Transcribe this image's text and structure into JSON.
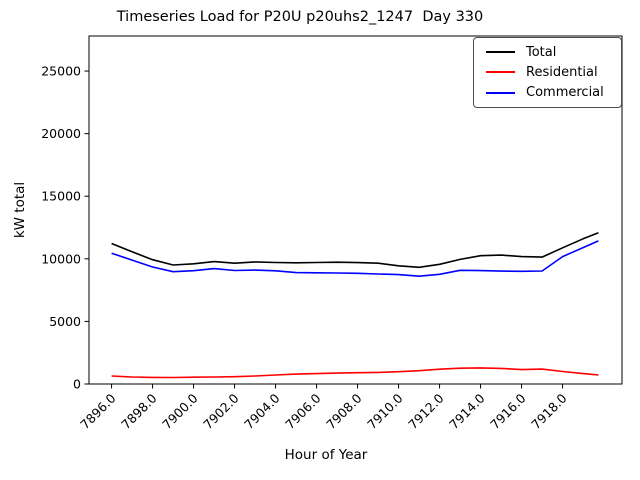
{
  "chart_data": {
    "type": "line",
    "title": "Timeseries Load for P20U p20uhs2_1247  Day 330",
    "xlabel": "Hour of Year",
    "ylabel": "kW total",
    "xlim": [
      7894.9,
      7920.9
    ],
    "ylim": [
      0,
      27800
    ],
    "grid": false,
    "legend_position": "upper right",
    "xticks": [
      7896,
      7898,
      7900,
      7902,
      7904,
      7906,
      7908,
      7910,
      7912,
      7914,
      7916,
      7918
    ],
    "xtick_labels": [
      "7896.0",
      "7898.0",
      "7900.0",
      "7902.0",
      "7904.0",
      "7906.0",
      "7908.0",
      "7910.0",
      "7912.0",
      "7914.0",
      "7916.0",
      "7918.0"
    ],
    "yticks": [
      0,
      5000,
      10000,
      15000,
      20000,
      25000
    ],
    "ytick_labels": [
      "0",
      "5000",
      "10000",
      "15000",
      "20000",
      "25000"
    ],
    "x": [
      7896,
      7897,
      7898,
      7899,
      7900,
      7901,
      7902,
      7903,
      7904,
      7905,
      7906,
      7907,
      7908,
      7909,
      7910,
      7911,
      7912,
      7913,
      7914,
      7915,
      7916,
      7917,
      7918,
      7919,
      7919.75
    ],
    "series": [
      {
        "name": "Total",
        "color": "#000000",
        "values": [
          11220,
          10560,
          9930,
          9510,
          9600,
          9780,
          9650,
          9750,
          9710,
          9680,
          9710,
          9730,
          9700,
          9650,
          9440,
          9320,
          9560,
          9950,
          10250,
          10300,
          10180,
          10140,
          10880,
          11600,
          12080
        ]
      },
      {
        "name": "Residential",
        "color": "#ff0000",
        "values": [
          640,
          560,
          530,
          520,
          540,
          560,
          580,
          640,
          720,
          790,
          830,
          870,
          900,
          930,
          980,
          1060,
          1180,
          1260,
          1290,
          1250,
          1150,
          1190,
          1000,
          830,
          730
        ]
      },
      {
        "name": "Commercial",
        "color": "#0000ff",
        "values": [
          10450,
          9900,
          9350,
          8970,
          9050,
          9220,
          9070,
          9100,
          9040,
          8900,
          8880,
          8870,
          8840,
          8790,
          8740,
          8610,
          8760,
          9080,
          9060,
          9020,
          9000,
          9030,
          10180,
          10900,
          11430
        ]
      }
    ]
  }
}
